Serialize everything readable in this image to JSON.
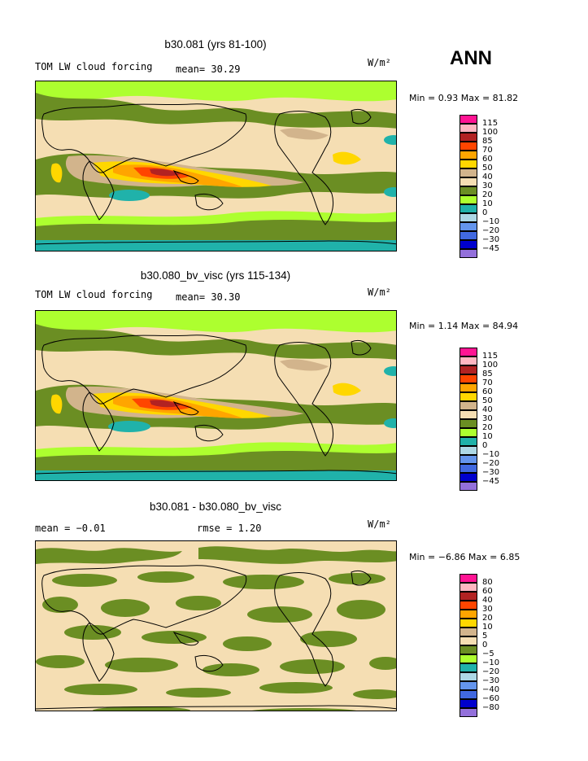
{
  "season": "ANN",
  "units": "W/m²",
  "colorbar_colors": [
    "#ff1493",
    "#ffb6c1",
    "#b22222",
    "#ff4500",
    "#ffa500",
    "#ffd700",
    "#d2b48c",
    "#f5deb3",
    "#6b8e23",
    "#adff2f",
    "#20b2aa",
    "#add8e6",
    "#6495ed",
    "#4169e1",
    "#0000cd",
    "#9370db"
  ],
  "chart_data": [
    {
      "type": "heatmap",
      "title": "b30.081 (yrs 81-100)",
      "variable": "TOM LW cloud forcing",
      "stat_text": "mean=  30.29",
      "units": "W/m²",
      "min_max_text": "Min =    0.93 Max =   81.82",
      "min": 0.93,
      "max": 81.82,
      "mean": 30.29,
      "colorbar_levels": [
        "115",
        "100",
        "85",
        "70",
        "60",
        "50",
        "40",
        "30",
        "20",
        "10",
        "0",
        "−10",
        "−20",
        "−30",
        "−45"
      ]
    },
    {
      "type": "heatmap",
      "title": "b30.080_bv_visc (yrs 115-134)",
      "variable": "TOM LW cloud forcing",
      "stat_text": "mean=  30.30",
      "units": "W/m²",
      "min_max_text": "Min =    1.14 Max =   84.94",
      "min": 1.14,
      "max": 84.94,
      "mean": 30.3,
      "colorbar_levels": [
        "115",
        "100",
        "85",
        "70",
        "60",
        "50",
        "40",
        "30",
        "20",
        "10",
        "0",
        "−10",
        "−20",
        "−30",
        "−45"
      ]
    },
    {
      "type": "heatmap",
      "title": "b30.081 - b30.080_bv_visc",
      "stat_left": "mean =   −0.01",
      "stat_right": "rmse =    1.20",
      "units": "W/m²",
      "min_max_text": "Min =  −6.86 Max =    6.85",
      "min": -6.86,
      "max": 6.85,
      "mean": -0.01,
      "rmse": 1.2,
      "colorbar_levels": [
        "80",
        "60",
        "40",
        "30",
        "20",
        "10",
        "5",
        "0",
        "−5",
        "−10",
        "−20",
        "−30",
        "−40",
        "−60",
        "−80"
      ]
    }
  ]
}
